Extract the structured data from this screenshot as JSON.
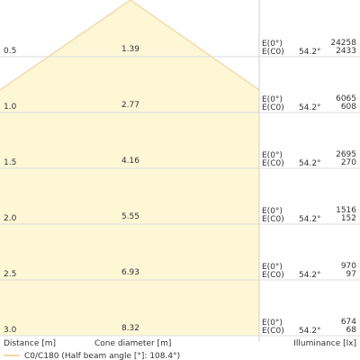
{
  "rows": [
    {
      "distance": "0.5",
      "diameter": "1.39",
      "e0_label": "E(0°)",
      "ec0_label": "E(C0)",
      "angle": "54.2°",
      "e0": "24258",
      "ec0": "2433"
    },
    {
      "distance": "1.0",
      "diameter": "2.77",
      "e0_label": "E(0°)",
      "ec0_label": "E(C0)",
      "angle": "54.2°",
      "e0": "6065",
      "ec0": "608"
    },
    {
      "distance": "1.5",
      "diameter": "4.16",
      "e0_label": "E(0°)",
      "ec0_label": "E(C0)",
      "angle": "54.2°",
      "e0": "2695",
      "ec0": "270"
    },
    {
      "distance": "2.0",
      "diameter": "5.55",
      "e0_label": "E(0°)",
      "ec0_label": "E(C0)",
      "angle": "54.2°",
      "e0": "1516",
      "ec0": "152"
    },
    {
      "distance": "2.5",
      "diameter": "6.93",
      "e0_label": "E(0°)",
      "ec0_label": "E(C0)",
      "angle": "54.2°",
      "e0": "970",
      "ec0": "97"
    },
    {
      "distance": "3.0",
      "diameter": "8.32",
      "e0_label": "E(0°)",
      "ec0_label": "E(C0)",
      "angle": "54.2°",
      "e0": "674",
      "ec0": "68"
    }
  ],
  "footer": {
    "distance": "Distance [m]",
    "diameter": "Cone diameter [m]",
    "illuminance": "Illuminance [lx]"
  },
  "legend": "C0/C180 (Half beam angle [°]: 108.4°)"
}
